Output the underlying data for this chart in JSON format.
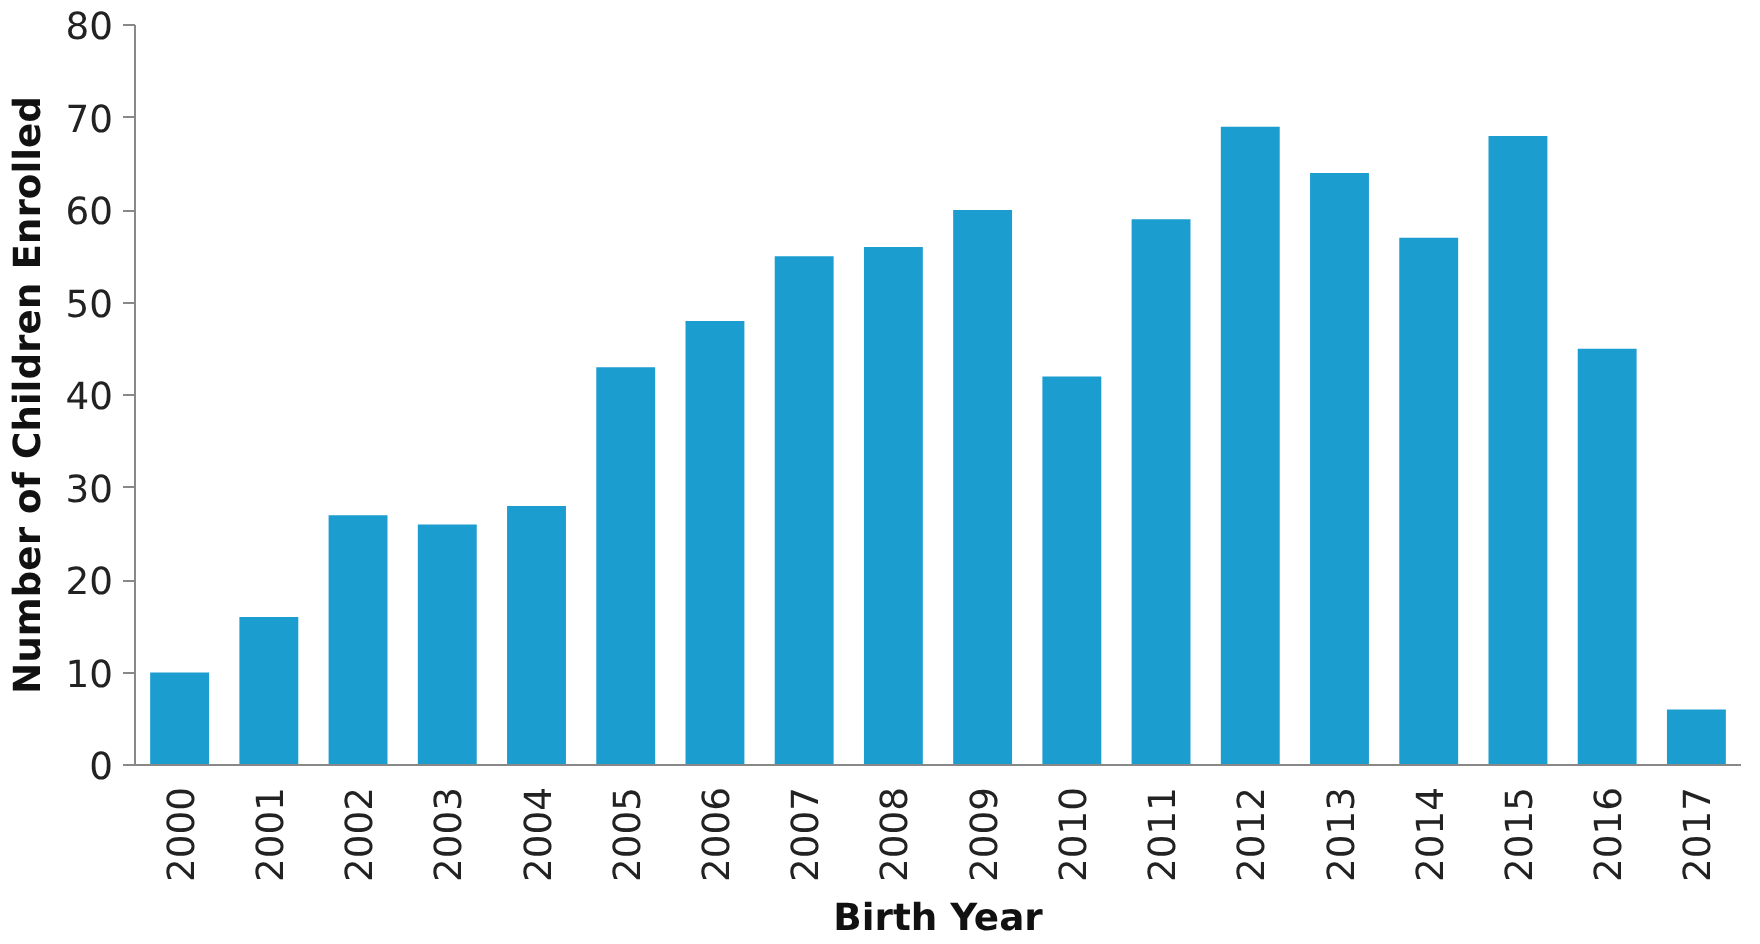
{
  "chart_data": {
    "type": "bar",
    "xlabel": "Birth Year",
    "ylabel": "Number of Children Enrolled",
    "categories": [
      "2000",
      "2001",
      "2002",
      "2003",
      "2004",
      "2005",
      "2006",
      "2007",
      "2008",
      "2009",
      "2010",
      "2011",
      "2012",
      "2013",
      "2014",
      "2015",
      "2016",
      "2017"
    ],
    "values": [
      10,
      16,
      27,
      26,
      28,
      43,
      48,
      55,
      56,
      60,
      42,
      59,
      69,
      64,
      57,
      68,
      45,
      6
    ],
    "color": "#1b9dd0",
    "ylim": [
      0,
      80
    ],
    "yticks": [
      0,
      10,
      20,
      30,
      40,
      50,
      60,
      70,
      80
    ],
    "grid": false
  }
}
